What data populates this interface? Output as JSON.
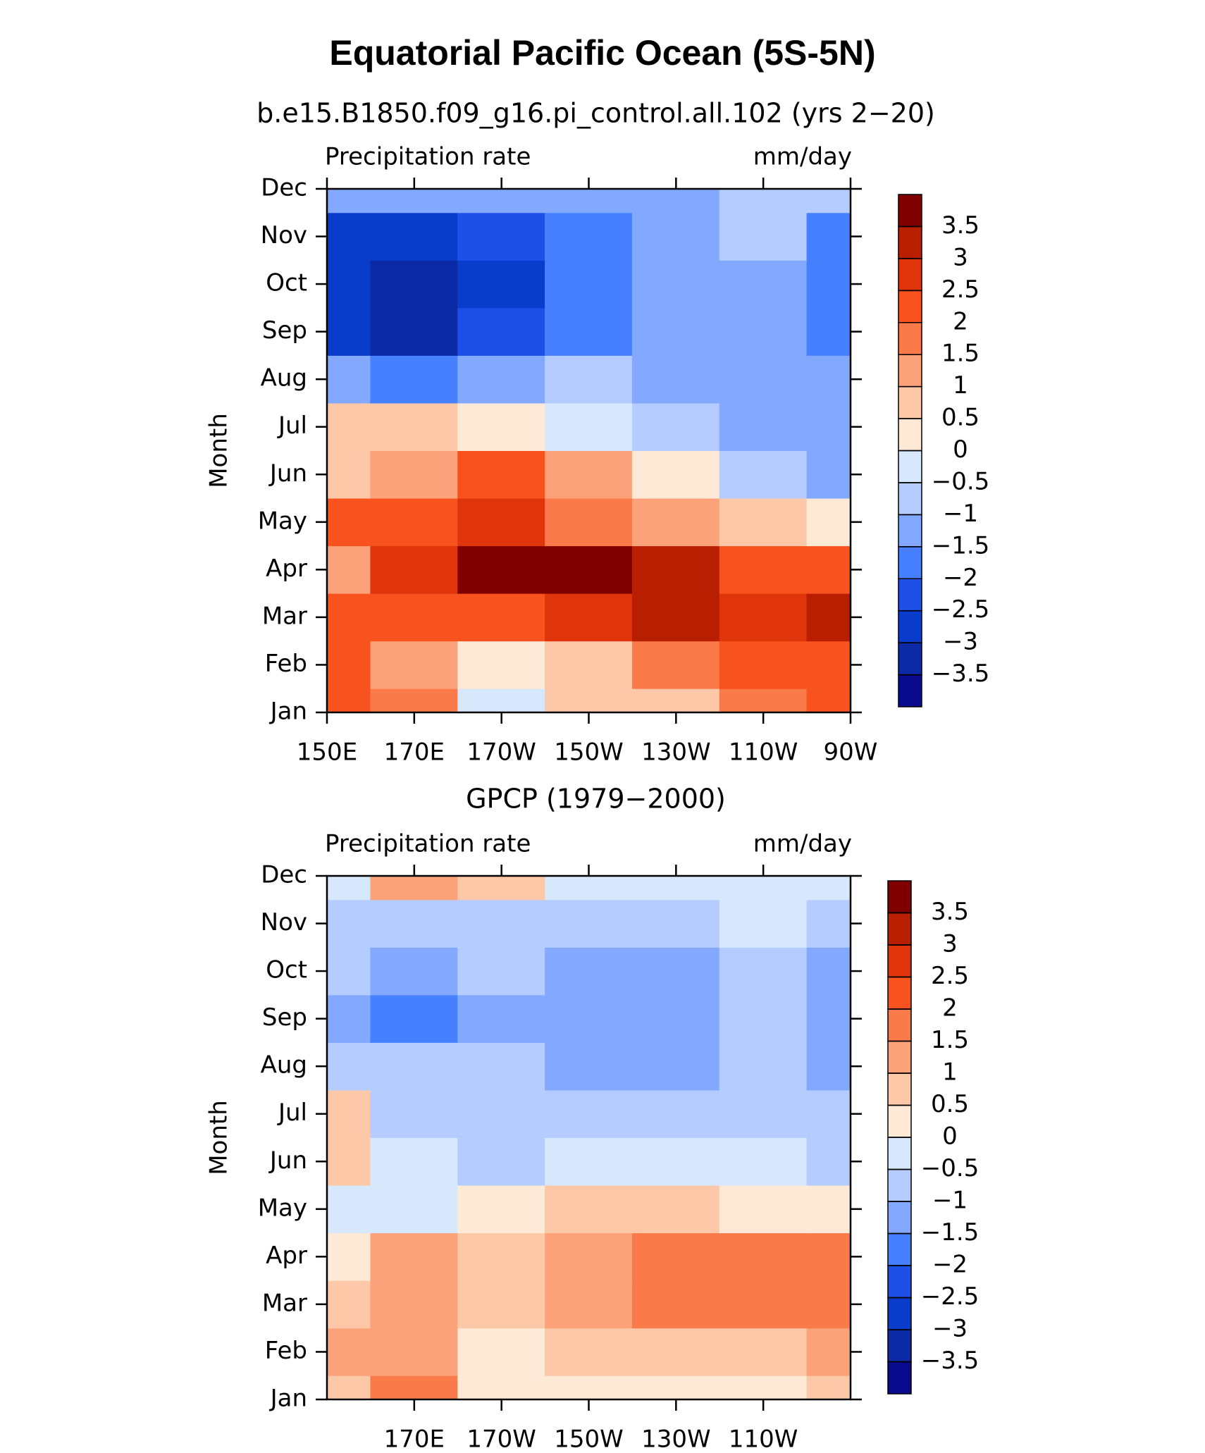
{
  "title": "Equatorial Pacific Ocean (5S-5N)",
  "chart_data": [
    {
      "type": "contour",
      "subtitle": "b.e15.B1850.f09_g16.pi_control.all.102 (yrs 2−20)",
      "left_label": "Precipitation rate",
      "right_label": "mm/day",
      "ylabel": "Month",
      "y": [
        "Jan",
        "Feb",
        "Mar",
        "Apr",
        "May",
        "Jun",
        "Jul",
        "Aug",
        "Sep",
        "Oct",
        "Nov",
        "Dec"
      ],
      "x": [
        150,
        170,
        190,
        210,
        230,
        250,
        270
      ],
      "xlim": [
        150,
        270
      ],
      "xticks": [
        {
          "value": 150,
          "label": "150E"
        },
        {
          "value": 170,
          "label": "170E"
        },
        {
          "value": 190,
          "label": "170W"
        },
        {
          "value": 210,
          "label": "150W"
        },
        {
          "value": 230,
          "label": "130W"
        },
        {
          "value": 250,
          "label": "110W"
        },
        {
          "value": 270,
          "label": "90W"
        }
      ],
      "z": [
        [
          2,
          1.5,
          -0.5,
          0.5,
          0.5,
          1.5,
          2
        ],
        [
          2.2,
          1,
          0.2,
          0.8,
          1.5,
          2,
          2.2
        ],
        [
          2.2,
          2.2,
          2,
          2.5,
          3,
          2.5,
          3
        ],
        [
          1,
          2.5,
          3.5,
          3.5,
          3.2,
          2.2,
          2.2
        ],
        [
          2.2,
          2.2,
          2.5,
          1.8,
          1.2,
          0.5,
          0.2
        ],
        [
          0.5,
          1.2,
          2,
          1,
          0,
          -1,
          -1.2
        ],
        [
          0.5,
          0.5,
          0.2,
          -0.5,
          -1,
          -1.2,
          -1.2
        ],
        [
          -1.5,
          -2,
          -1.2,
          -1,
          -1.2,
          -1.2,
          -1.5
        ],
        [
          -3,
          -3.5,
          -2.5,
          -2,
          -1.2,
          -1.2,
          -1.8
        ],
        [
          -3,
          -3.5,
          -2.8,
          -2,
          -1.5,
          -1.2,
          -2
        ],
        [
          -2.8,
          -3,
          -2.2,
          -1.8,
          -1.2,
          -1,
          -1.6
        ],
        [
          -1.5,
          -1.2,
          -1.2,
          -1.2,
          -1.2,
          -0.8,
          -0.8
        ]
      ],
      "levels": [
        {
          "value": -3.5,
          "label": "−3.5"
        },
        {
          "value": -3,
          "label": "−3"
        },
        {
          "value": -2.5,
          "label": "−2.5"
        },
        {
          "value": -2,
          "label": "−2"
        },
        {
          "value": -1.5,
          "label": "−1.5"
        },
        {
          "value": -1,
          "label": "−1"
        },
        {
          "value": -0.5,
          "label": "−0.5"
        },
        0,
        0.5,
        1,
        1.5,
        2,
        2.5,
        3,
        3.5
      ],
      "colors": [
        "#0a0a8c",
        "#0c2aa6",
        "#0a3ccc",
        "#1e50e8",
        "#4680ff",
        "#82a8ff",
        "#b4ccff",
        "#d8e8fc",
        "#fde9d6",
        "#fcc8a8",
        "#fca27a",
        "#fb7a4a",
        "#f8521e",
        "#e0340a",
        "#b81e00",
        "#800000"
      ]
    },
    {
      "type": "contour",
      "subtitle": "GPCP (1979−2000)",
      "left_label": "Precipitation rate",
      "right_label": "mm/day",
      "ylabel": "Month",
      "y": [
        "Jan",
        "Feb",
        "Mar",
        "Apr",
        "May",
        "Jun",
        "Jul",
        "Aug",
        "Sep",
        "Oct",
        "Nov",
        "Dec"
      ],
      "x": [
        150,
        170,
        190,
        210,
        230,
        250,
        270
      ],
      "xlim": [
        150,
        270
      ],
      "xticks": [
        {
          "value": 170,
          "label": "170E"
        },
        {
          "value": 190,
          "label": "170W"
        },
        {
          "value": 210,
          "label": "150W"
        },
        {
          "value": 230,
          "label": "130W"
        },
        {
          "value": 250,
          "label": "110W"
        }
      ],
      "z": [
        [
          0.8,
          1.8,
          0.2,
          0.2,
          0.2,
          0.2,
          0.5
        ],
        [
          1.2,
          1.2,
          0.3,
          0.8,
          0.8,
          0.8,
          1.2
        ],
        [
          0.8,
          1.3,
          0.8,
          1.2,
          1.8,
          1.5,
          1.8
        ],
        [
          0.2,
          1,
          0.8,
          1.3,
          1.8,
          1.5,
          1.8
        ],
        [
          -0.2,
          -0.5,
          0.2,
          0.8,
          0.5,
          0.2,
          0.2
        ],
        [
          0.5,
          -0.5,
          -0.8,
          -0.2,
          -0.2,
          -0.5,
          -0.8
        ],
        [
          0.5,
          -0.8,
          -0.8,
          -0.8,
          -0.8,
          -0.8,
          -0.8
        ],
        [
          -1,
          -0.8,
          -1,
          -1.3,
          -1.3,
          -0.8,
          -1.2
        ],
        [
          -1.2,
          -1.8,
          -1.2,
          -1.2,
          -1.3,
          -0.8,
          -1.2
        ],
        [
          -1,
          -1.5,
          -1,
          -1.2,
          -1.2,
          -0.8,
          -1.2
        ],
        [
          -1,
          -0.8,
          -0.8,
          -0.8,
          -0.8,
          -0.5,
          -0.8
        ],
        [
          -0.2,
          1,
          0.5,
          -0.2,
          -0.2,
          -0.2,
          -0.2
        ]
      ],
      "levels": [
        {
          "value": -3.5,
          "label": "−3.5"
        },
        {
          "value": -3,
          "label": "−3"
        },
        {
          "value": -2.5,
          "label": "−2.5"
        },
        {
          "value": -2,
          "label": "−2"
        },
        {
          "value": -1.5,
          "label": "−1.5"
        },
        {
          "value": -1,
          "label": "−1"
        },
        {
          "value": -0.5,
          "label": "−0.5"
        },
        0,
        0.5,
        1,
        1.5,
        2,
        2.5,
        3,
        3.5
      ],
      "colors": [
        "#0a0a8c",
        "#0c2aa6",
        "#0a3ccc",
        "#1e50e8",
        "#4680ff",
        "#82a8ff",
        "#b4ccff",
        "#d8e8fc",
        "#fde9d6",
        "#fcc8a8",
        "#fca27a",
        "#fb7a4a",
        "#f8521e",
        "#e0340a",
        "#b81e00",
        "#800000"
      ]
    }
  ]
}
